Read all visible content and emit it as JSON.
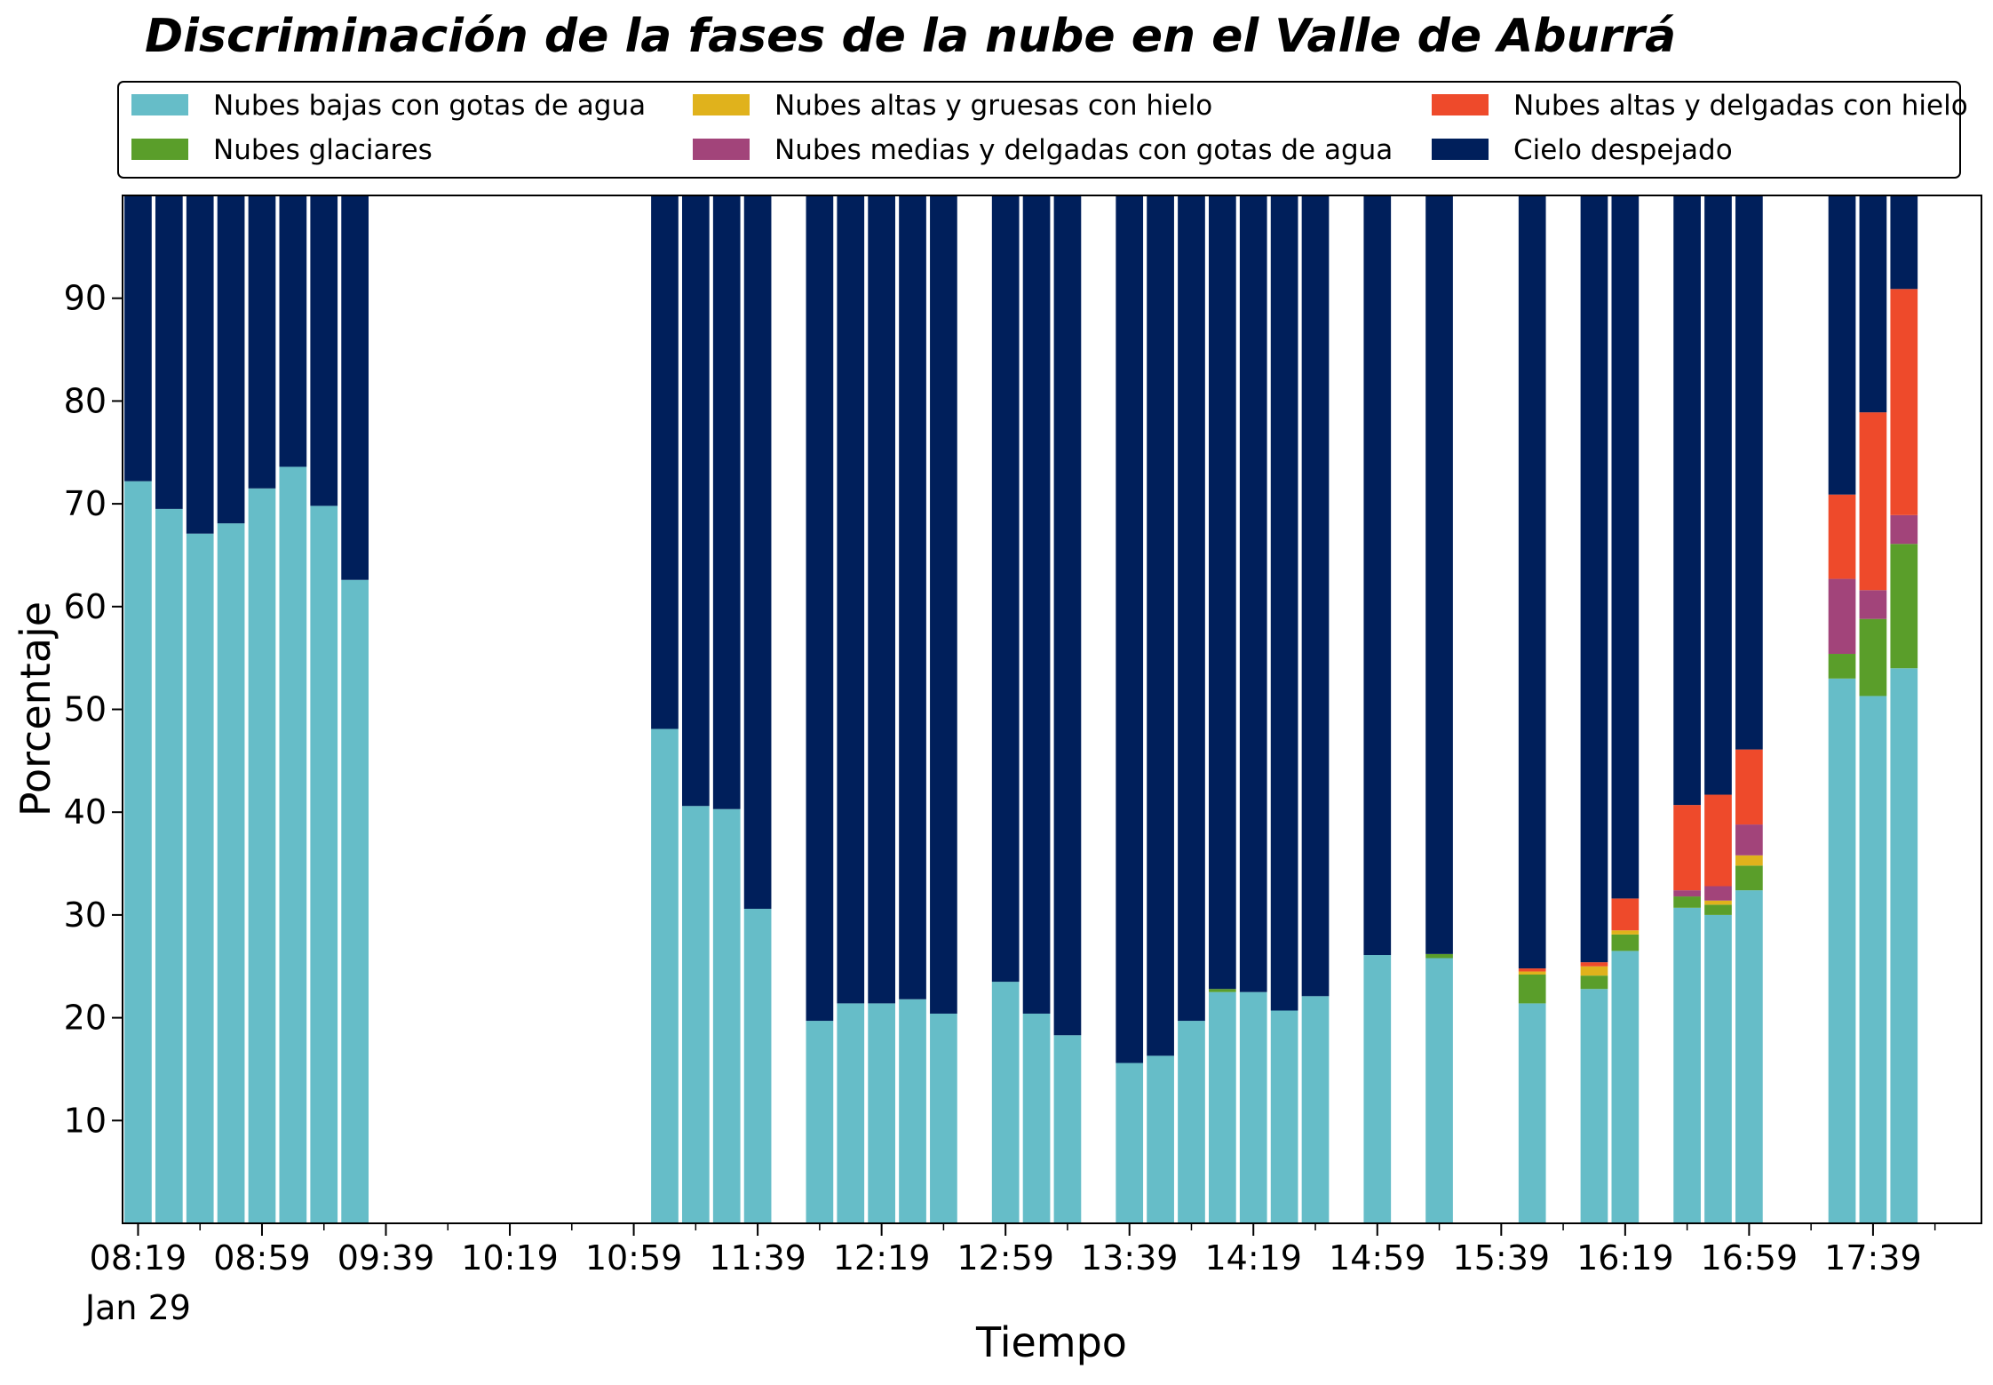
{
  "chart_data": {
    "type": "bar",
    "stacked": true,
    "title": "Discriminación de la fases de la nube en el Valle de Aburrá",
    "xlabel": "Tiempo",
    "ylabel": "Porcentaje",
    "ylim": [
      0,
      100
    ],
    "yticks": [
      10,
      20,
      30,
      40,
      50,
      60,
      70,
      80,
      90
    ],
    "xlim": [
      "08:14",
      "18:14"
    ],
    "x_major_ticks": [
      "08:19",
      "08:59",
      "09:39",
      "10:19",
      "10:59",
      "11:39",
      "12:19",
      "12:59",
      "13:39",
      "14:19",
      "14:59",
      "15:39",
      "16:19",
      "16:59",
      "17:39"
    ],
    "x_date_label": "Jan 29",
    "x_minor_tick_interval_minutes": 20,
    "grid": false,
    "legend_position": "top",
    "colors": {
      "low_water": "#66bdc8",
      "glacial": "#5a9e2a",
      "high_thick_ice": "#e0b21c",
      "mid_thin_water": "#a2447a",
      "high_thin_ice": "#ee4a2b",
      "clear": "#001f5b"
    },
    "series": [
      {
        "key": "low_water",
        "name": "Nubes bajas con gotas de agua"
      },
      {
        "key": "glacial",
        "name": "Nubes glaciares"
      },
      {
        "key": "high_thick_ice",
        "name": "Nubes altas y gruesas con hielo"
      },
      {
        "key": "mid_thin_water",
        "name": "Nubes medias y delgadas con gotas de agua"
      },
      {
        "key": "high_thin_ice",
        "name": "Nubes altas y delgadas con hielo"
      },
      {
        "key": "clear",
        "name": "Cielo despejado"
      }
    ],
    "stack_order": [
      "low_water",
      "glacial",
      "high_thick_ice",
      "mid_thin_water",
      "high_thin_ice",
      "clear"
    ],
    "bars": [
      {
        "time": "08:19",
        "low_water": 72.2,
        "glacial": 0,
        "high_thick_ice": 0,
        "mid_thin_water": 0,
        "high_thin_ice": 0,
        "clear": 27.8
      },
      {
        "time": "08:29",
        "low_water": 69.5,
        "glacial": 0,
        "high_thick_ice": 0,
        "mid_thin_water": 0,
        "high_thin_ice": 0,
        "clear": 30.5
      },
      {
        "time": "08:39",
        "low_water": 67.1,
        "glacial": 0,
        "high_thick_ice": 0,
        "mid_thin_water": 0,
        "high_thin_ice": 0,
        "clear": 32.9
      },
      {
        "time": "08:49",
        "low_water": 68.1,
        "glacial": 0,
        "high_thick_ice": 0,
        "mid_thin_water": 0,
        "high_thin_ice": 0,
        "clear": 31.9
      },
      {
        "time": "08:59",
        "low_water": 71.5,
        "glacial": 0,
        "high_thick_ice": 0,
        "mid_thin_water": 0,
        "high_thin_ice": 0,
        "clear": 28.5
      },
      {
        "time": "09:09",
        "low_water": 73.6,
        "glacial": 0,
        "high_thick_ice": 0,
        "mid_thin_water": 0,
        "high_thin_ice": 0,
        "clear": 26.4
      },
      {
        "time": "09:19",
        "low_water": 69.8,
        "glacial": 0,
        "high_thick_ice": 0,
        "mid_thin_water": 0,
        "high_thin_ice": 0,
        "clear": 30.2
      },
      {
        "time": "09:29",
        "low_water": 62.6,
        "glacial": 0,
        "high_thick_ice": 0,
        "mid_thin_water": 0,
        "high_thin_ice": 0,
        "clear": 37.4
      },
      {
        "time": "11:09",
        "low_water": 48.1,
        "glacial": 0,
        "high_thick_ice": 0,
        "mid_thin_water": 0,
        "high_thin_ice": 0,
        "clear": 51.9
      },
      {
        "time": "11:19",
        "low_water": 40.6,
        "glacial": 0,
        "high_thick_ice": 0,
        "mid_thin_water": 0,
        "high_thin_ice": 0,
        "clear": 59.4
      },
      {
        "time": "11:29",
        "low_water": 40.3,
        "glacial": 0,
        "high_thick_ice": 0,
        "mid_thin_water": 0,
        "high_thin_ice": 0,
        "clear": 59.7
      },
      {
        "time": "11:39",
        "low_water": 30.6,
        "glacial": 0,
        "high_thick_ice": 0,
        "mid_thin_water": 0,
        "high_thin_ice": 0,
        "clear": 69.4
      },
      {
        "time": "11:59",
        "low_water": 19.7,
        "glacial": 0,
        "high_thick_ice": 0,
        "mid_thin_water": 0,
        "high_thin_ice": 0,
        "clear": 80.3
      },
      {
        "time": "12:09",
        "low_water": 21.4,
        "glacial": 0,
        "high_thick_ice": 0,
        "mid_thin_water": 0,
        "high_thin_ice": 0,
        "clear": 78.6
      },
      {
        "time": "12:19",
        "low_water": 21.4,
        "glacial": 0,
        "high_thick_ice": 0,
        "mid_thin_water": 0,
        "high_thin_ice": 0,
        "clear": 78.6
      },
      {
        "time": "12:29",
        "low_water": 21.8,
        "glacial": 0,
        "high_thick_ice": 0,
        "mid_thin_water": 0,
        "high_thin_ice": 0,
        "clear": 78.2
      },
      {
        "time": "12:39",
        "low_water": 20.4,
        "glacial": 0,
        "high_thick_ice": 0,
        "mid_thin_water": 0,
        "high_thin_ice": 0,
        "clear": 79.6
      },
      {
        "time": "12:59",
        "low_water": 23.5,
        "glacial": 0,
        "high_thick_ice": 0,
        "mid_thin_water": 0,
        "high_thin_ice": 0,
        "clear": 76.5
      },
      {
        "time": "13:09",
        "low_water": 20.4,
        "glacial": 0,
        "high_thick_ice": 0,
        "mid_thin_water": 0,
        "high_thin_ice": 0,
        "clear": 79.6
      },
      {
        "time": "13:19",
        "low_water": 18.3,
        "glacial": 0,
        "high_thick_ice": 0,
        "mid_thin_water": 0,
        "high_thin_ice": 0,
        "clear": 81.7
      },
      {
        "time": "13:39",
        "low_water": 15.6,
        "glacial": 0,
        "high_thick_ice": 0,
        "mid_thin_water": 0,
        "high_thin_ice": 0,
        "clear": 84.4
      },
      {
        "time": "13:49",
        "low_water": 16.3,
        "glacial": 0,
        "high_thick_ice": 0,
        "mid_thin_water": 0,
        "high_thin_ice": 0,
        "clear": 83.7
      },
      {
        "time": "13:59",
        "low_water": 19.7,
        "glacial": 0,
        "high_thick_ice": 0,
        "mid_thin_water": 0,
        "high_thin_ice": 0,
        "clear": 80.3
      },
      {
        "time": "14:09",
        "low_water": 22.5,
        "glacial": 0.3,
        "high_thick_ice": 0,
        "mid_thin_water": 0,
        "high_thin_ice": 0,
        "clear": 77.2
      },
      {
        "time": "14:19",
        "low_water": 22.5,
        "glacial": 0,
        "high_thick_ice": 0,
        "mid_thin_water": 0,
        "high_thin_ice": 0,
        "clear": 77.5
      },
      {
        "time": "14:29",
        "low_water": 20.7,
        "glacial": 0,
        "high_thick_ice": 0,
        "mid_thin_water": 0,
        "high_thin_ice": 0,
        "clear": 79.3
      },
      {
        "time": "14:39",
        "low_water": 22.1,
        "glacial": 0,
        "high_thick_ice": 0,
        "mid_thin_water": 0,
        "high_thin_ice": 0,
        "clear": 77.9
      },
      {
        "time": "14:59",
        "low_water": 26.1,
        "glacial": 0,
        "high_thick_ice": 0,
        "mid_thin_water": 0,
        "high_thin_ice": 0,
        "clear": 73.9
      },
      {
        "time": "15:19",
        "low_water": 25.8,
        "glacial": 0.4,
        "high_thick_ice": 0,
        "mid_thin_water": 0,
        "high_thin_ice": 0,
        "clear": 73.8
      },
      {
        "time": "15:49",
        "low_water": 21.4,
        "glacial": 2.8,
        "high_thick_ice": 0.3,
        "mid_thin_water": 0,
        "high_thin_ice": 0.3,
        "clear": 75.2
      },
      {
        "time": "16:09",
        "low_water": 22.8,
        "glacial": 1.3,
        "high_thick_ice": 0.9,
        "mid_thin_water": 0,
        "high_thin_ice": 0.4,
        "clear": 74.6
      },
      {
        "time": "16:19",
        "low_water": 26.5,
        "glacial": 1.6,
        "high_thick_ice": 0.4,
        "mid_thin_water": 0,
        "high_thin_ice": 3.1,
        "clear": 68.4
      },
      {
        "time": "16:39",
        "low_water": 30.7,
        "glacial": 1.1,
        "high_thick_ice": 0,
        "mid_thin_water": 0.6,
        "high_thin_ice": 8.3,
        "clear": 59.3
      },
      {
        "time": "16:49",
        "low_water": 30.0,
        "glacial": 1.0,
        "high_thick_ice": 0.4,
        "mid_thin_water": 1.4,
        "high_thin_ice": 8.9,
        "clear": 58.3
      },
      {
        "time": "16:59",
        "low_water": 32.4,
        "glacial": 2.4,
        "high_thick_ice": 1.0,
        "mid_thin_water": 3.0,
        "high_thin_ice": 7.3,
        "clear": 53.9
      },
      {
        "time": "17:29",
        "low_water": 53.0,
        "glacial": 2.4,
        "high_thick_ice": 0,
        "mid_thin_water": 7.3,
        "high_thin_ice": 8.2,
        "clear": 29.1
      },
      {
        "time": "17:39",
        "low_water": 51.3,
        "glacial": 7.5,
        "high_thick_ice": 0,
        "mid_thin_water": 2.8,
        "high_thin_ice": 17.3,
        "clear": 21.1
      },
      {
        "time": "17:49",
        "low_water": 54.0,
        "glacial": 12.1,
        "high_thick_ice": 0,
        "mid_thin_water": 2.8,
        "high_thin_ice": 22.0,
        "clear": 9.1
      }
    ]
  }
}
